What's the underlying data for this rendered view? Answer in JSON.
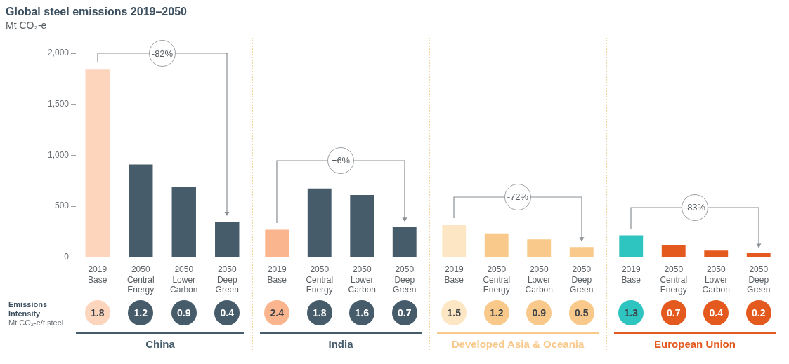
{
  "chart_data": [
    {
      "type": "bar",
      "title": "Global steel emissions 2019–2050",
      "ylabel": "Mt CO₂-e",
      "xlabel": "China",
      "categories": [
        "2019 Base",
        "2050 Central Energy",
        "2050 Lower Carbon",
        "2050 Deep Green"
      ],
      "values": [
        1840,
        910,
        690,
        350
      ],
      "colors": [
        "#fcd5bc",
        "#465c6b",
        "#465c6b",
        "#465c6b"
      ],
      "ylim": [
        0,
        2000
      ],
      "yticks": [
        0,
        500,
        {
          "value": 1000,
          "label": "1,000"
        },
        {
          "value": 1500,
          "label": "1,500"
        },
        {
          "value": 2000,
          "label": "2,000"
        }
      ],
      "annotations": [
        "-82%",
        "Emissions Intensity",
        "Mt CO₂-e/t steel",
        "1.8",
        "1.2",
        "0.9",
        "0.4"
      ]
    },
    {
      "type": "bar",
      "xlabel": "India",
      "categories": [
        "2019 Base",
        "2050 Central Energy",
        "2050 Lower Carbon",
        "2050 Deep Green"
      ],
      "values": [
        270,
        675,
        610,
        295
      ],
      "colors": [
        "#fbb58e",
        "#465c6b",
        "#465c6b",
        "#465c6b"
      ],
      "ylim": [
        0,
        2000
      ],
      "tick_labels": "x",
      "annotations": [
        "+6%",
        "2.4",
        "1.8",
        "1.6",
        "0.7"
      ]
    },
    {
      "type": "bar",
      "xlabel": "Developed Asia & Oceania",
      "categories": [
        "2019 Base",
        "2050 Central Energy",
        "2050 Lower Carbon",
        "2050 Deep Green"
      ],
      "values": [
        315,
        235,
        175,
        100
      ],
      "colors": [
        "#fde6c3",
        "#f8c98a",
        "#f8c98a",
        "#f8c98a"
      ],
      "ylim": [
        0,
        2000
      ],
      "tick_labels": "x",
      "annotations": [
        "-72%",
        "1.5",
        "1.2",
        "0.9",
        "0.5"
      ]
    },
    {
      "type": "bar",
      "xlabel": "European Union",
      "categories": [
        "2019 Base",
        "2050 Central Energy",
        "2050 Lower Carbon",
        "2050 Deep Green"
      ],
      "values": [
        215,
        115,
        65,
        40
      ],
      "colors": [
        "#2ec4c0",
        "#e4591d",
        "#e4591d",
        "#e4591d"
      ],
      "ylim": [
        0,
        2000
      ],
      "tick_labels": "x",
      "annotations": [
        "-83%",
        "1.3",
        "0.7",
        "0.4",
        "0.2"
      ]
    }
  ]
}
